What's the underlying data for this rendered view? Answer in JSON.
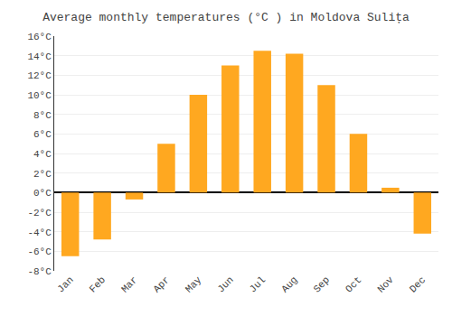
{
  "chart_data": {
    "type": "bar",
    "title": "Average monthly temperatures (°C ) in Moldova Sulița",
    "categories": [
      "Jan",
      "Feb",
      "Mar",
      "Apr",
      "May",
      "Jun",
      "Jul",
      "Aug",
      "Sep",
      "Oct",
      "Nov",
      "Dec"
    ],
    "values": [
      -6.5,
      -4.8,
      -0.7,
      5.0,
      10.0,
      13.0,
      14.5,
      14.2,
      11.0,
      6.0,
      0.5,
      -4.2
    ],
    "color": "#FFA820",
    "ylim": [
      -8,
      16
    ],
    "yticks": [
      {
        "value": -8,
        "label": "-8°C"
      },
      {
        "value": -6,
        "label": "-6°C"
      },
      {
        "value": -4,
        "label": "-4°C"
      },
      {
        "value": -2,
        "label": "-2°C"
      },
      {
        "value": 0,
        "label": "0°C"
      },
      {
        "value": 2,
        "label": "2°C"
      },
      {
        "value": 4,
        "label": "4°C"
      },
      {
        "value": 6,
        "label": "6°C"
      },
      {
        "value": 8,
        "label": "8°C"
      },
      {
        "value": 10,
        "label": "10°C"
      },
      {
        "value": 12,
        "label": "12°C"
      },
      {
        "value": 14,
        "label": "14°C"
      },
      {
        "value": 16,
        "label": "16°C"
      }
    ],
    "grid": true
  }
}
